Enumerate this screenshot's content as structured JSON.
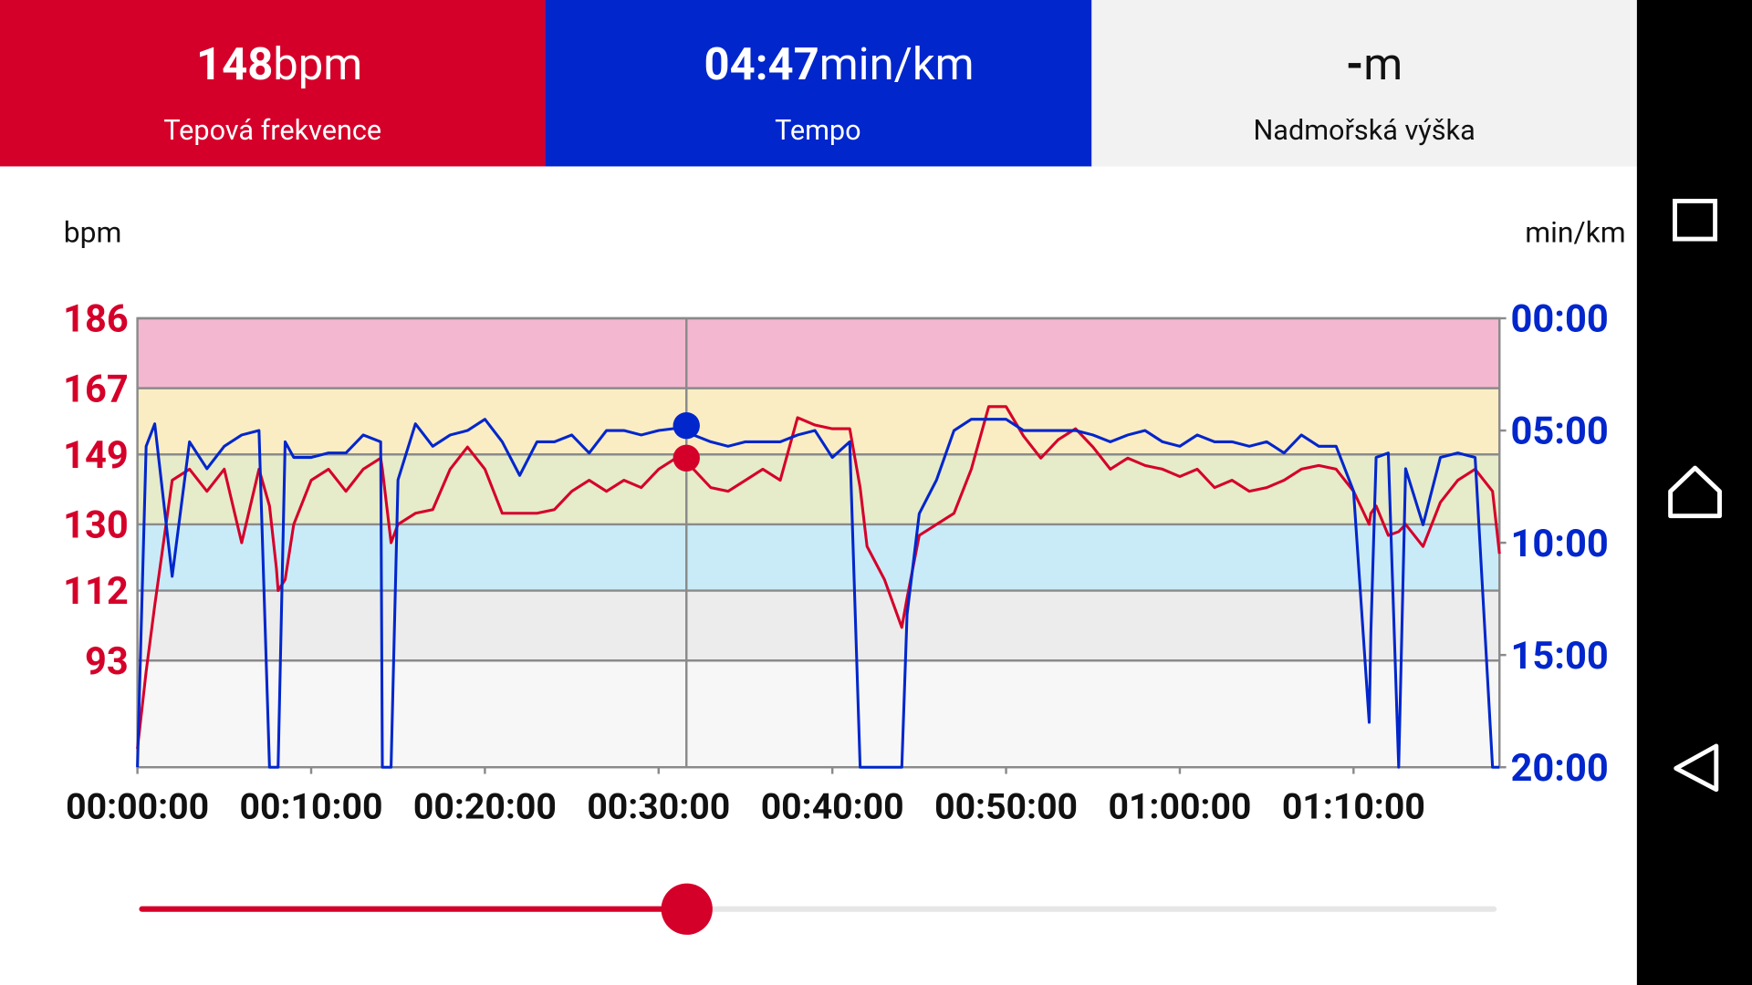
{
  "header": [
    {
      "value": "148",
      "unit": "bpm",
      "label": "Tepová frekvence"
    },
    {
      "value": "04:47",
      "unit": "min/km",
      "label": "Tempo"
    },
    {
      "value": "-",
      "unit": "m",
      "label": "Nadmořská výška"
    }
  ],
  "chart_data": {
    "type": "line",
    "y_label": "bpm",
    "y2_label": "min/km",
    "x": [
      0,
      0.5,
      1,
      2,
      3,
      4,
      5,
      6,
      7,
      7.6,
      8,
      8.1,
      8.5,
      9,
      10,
      11,
      12,
      13,
      14,
      14.1,
      14.6,
      15,
      16,
      17,
      18,
      19,
      20,
      21,
      22,
      23,
      24,
      25,
      26,
      27,
      28,
      29,
      30,
      31,
      31.6,
      32,
      33,
      34,
      35,
      36,
      37,
      38,
      39,
      40,
      41,
      41.6,
      42,
      43,
      44,
      44.3,
      45,
      46,
      47,
      48,
      49,
      50,
      51,
      52,
      53,
      54,
      55,
      56,
      57,
      58,
      59,
      60,
      61,
      62,
      63,
      64,
      65,
      66,
      67,
      68,
      69,
      70,
      70.9,
      71,
      71.3,
      72,
      72.6,
      73,
      74,
      75,
      76,
      77,
      78,
      78.4
    ],
    "series": [
      {
        "name": "bpm",
        "color": "#d5002a",
        "values": [
          69,
          90,
          108,
          142,
          145,
          139,
          145,
          125,
          145,
          135,
          118,
          112,
          115,
          130,
          142,
          145,
          139,
          145,
          148,
          145,
          125,
          130,
          133,
          134,
          145,
          151,
          145,
          133,
          133,
          133,
          134,
          139,
          142,
          139,
          142,
          140,
          145,
          148,
          148,
          145,
          140,
          139,
          142,
          145,
          142,
          159,
          157,
          156,
          156,
          140,
          124,
          115,
          102,
          110,
          127,
          130,
          133,
          145,
          162,
          162,
          154,
          148,
          153,
          156,
          151,
          145,
          148,
          146,
          145,
          143,
          145,
          140,
          142,
          139,
          140,
          142,
          145,
          146,
          145,
          139,
          130,
          133,
          135,
          127,
          128,
          130,
          124,
          136,
          142,
          145,
          139,
          122
        ]
      },
      {
        "name": "min/km",
        "color": "#0026cc",
        "axis": "y2",
        "values": [
          20,
          5.7,
          4.7,
          11.5,
          5.5,
          6.7,
          5.7,
          5.2,
          5.0,
          20,
          20,
          20,
          5.5,
          6.2,
          6.2,
          6.0,
          6.0,
          5.2,
          5.5,
          20,
          20,
          7.2,
          4.7,
          5.7,
          5.2,
          5.0,
          4.5,
          5.5,
          7.0,
          5.5,
          5.5,
          5.2,
          6.0,
          5.0,
          5.0,
          5.2,
          5.0,
          4.9,
          4.783,
          5.2,
          5.5,
          5.7,
          5.5,
          5.5,
          5.5,
          5.2,
          5.0,
          6.2,
          5.5,
          20,
          20,
          20,
          20,
          13.2,
          8.7,
          7.2,
          5.0,
          4.5,
          4.5,
          4.5,
          5.0,
          5.0,
          5.0,
          5.0,
          5.2,
          5.5,
          5.2,
          5.0,
          5.5,
          5.7,
          5.2,
          5.5,
          5.5,
          5.7,
          5.5,
          6.0,
          5.2,
          5.7,
          5.7,
          7.7,
          18.0,
          14,
          6.2,
          6.0,
          20,
          6.7,
          9.2,
          6.2,
          6.0,
          6.2,
          20,
          20
        ]
      }
    ],
    "xlim": [
      0,
      78.4
    ],
    "xticks": [
      {
        "value": 0,
        "label": "00:00:00"
      },
      {
        "value": 10,
        "label": "00:10:00"
      },
      {
        "value": 20,
        "label": "00:20:00"
      },
      {
        "value": 30,
        "label": "00:30:00"
      },
      {
        "value": 40,
        "label": "00:40:00"
      },
      {
        "value": 50,
        "label": "00:50:00"
      },
      {
        "value": 60,
        "label": "01:00:00"
      },
      {
        "value": 70,
        "label": "01:10:00"
      }
    ],
    "ylim": [
      64,
      186
    ],
    "yticks": [
      93,
      112,
      130,
      149,
      167,
      186
    ],
    "y2lim": [
      20,
      0
    ],
    "y2ticks": [
      {
        "value": 0,
        "label": "00:00"
      },
      {
        "value": 5,
        "label": "05:00"
      },
      {
        "value": 10,
        "label": "10:00"
      },
      {
        "value": 15,
        "label": "15:00"
      },
      {
        "value": 20,
        "label": "20:00"
      }
    ],
    "zone_colors": [
      "#f7f7f7",
      "#ececec",
      "#c9ebf8",
      "#e6ebca",
      "#fbedc3",
      "#f3b8cf"
    ],
    "grid": true,
    "cursor": {
      "x": 31.6,
      "hr": 148,
      "pace": 4.783
    }
  }
}
